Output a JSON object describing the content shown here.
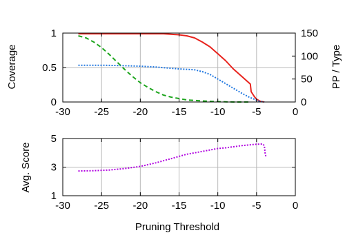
{
  "chart_data": [
    {
      "type": "line",
      "title": "",
      "xlabel": "",
      "ylabel": "Coverage",
      "y2label": "PP / Type",
      "xlim": [
        -30,
        0
      ],
      "ylim": [
        0,
        1
      ],
      "y2lim": [
        0,
        150
      ],
      "xticks": [
        -30,
        -25,
        -20,
        -15,
        -10,
        -5,
        0
      ],
      "yticks": [
        0,
        0.5,
        1
      ],
      "y2ticks": [
        0,
        50,
        100,
        150
      ],
      "grid": true,
      "series": [
        {
          "color": "#e8231d",
          "style": "solid",
          "axis": "y",
          "points": [
            [
              -28,
              0.99
            ],
            [
              -25,
              0.99
            ],
            [
              -20,
              0.99
            ],
            [
              -17,
              0.99
            ],
            [
              -15,
              0.975
            ],
            [
              -14,
              0.96
            ],
            [
              -13,
              0.93
            ],
            [
              -12,
              0.87
            ],
            [
              -11,
              0.8
            ],
            [
              -10,
              0.7
            ],
            [
              -9,
              0.6
            ],
            [
              -8,
              0.48
            ],
            [
              -7,
              0.38
            ],
            [
              -6,
              0.28
            ],
            [
              -5.8,
              0.26
            ],
            [
              -5.7,
              0.15
            ],
            [
              -5.3,
              0.08
            ],
            [
              -5,
              0.04
            ],
            [
              -4.5,
              0.01
            ],
            [
              -4,
              0.0
            ]
          ]
        },
        {
          "color": "#1f77e0",
          "style": "dotted",
          "axis": "y2",
          "points": [
            [
              -28,
              80
            ],
            [
              -25,
              80
            ],
            [
              -22,
              79
            ],
            [
              -20,
              78
            ],
            [
              -18,
              76
            ],
            [
              -15,
              72
            ],
            [
              -13,
              70
            ],
            [
              -12,
              66
            ],
            [
              -11,
              60
            ],
            [
              -10,
              50
            ],
            [
              -9,
              40
            ],
            [
              -8,
              30
            ],
            [
              -7,
              20
            ],
            [
              -6,
              11
            ],
            [
              -5,
              4
            ],
            [
              -4.5,
              1
            ],
            [
              -4,
              0
            ]
          ]
        },
        {
          "color": "#1da51d",
          "style": "dashed",
          "axis": "y",
          "points": [
            [
              -28,
              0.96
            ],
            [
              -27,
              0.93
            ],
            [
              -26,
              0.87
            ],
            [
              -25,
              0.79
            ],
            [
              -24,
              0.69
            ],
            [
              -23,
              0.58
            ],
            [
              -22,
              0.47
            ],
            [
              -21,
              0.37
            ],
            [
              -20,
              0.28
            ],
            [
              -19,
              0.21
            ],
            [
              -18,
              0.15
            ],
            [
              -17,
              0.1
            ],
            [
              -16,
              0.07
            ],
            [
              -15,
              0.05
            ],
            [
              -14,
              0.03
            ],
            [
              -12,
              0.015
            ],
            [
              -10,
              0.005
            ],
            [
              -8,
              0.0
            ],
            [
              -6,
              0.0
            ]
          ]
        }
      ]
    },
    {
      "type": "line",
      "title": "",
      "xlabel": "Pruning Threshold",
      "ylabel": "Avg. Score",
      "xlim": [
        -30,
        0
      ],
      "ylim": [
        1,
        5
      ],
      "xticks": [
        -30,
        -25,
        -20,
        -15,
        -10,
        -5,
        0
      ],
      "yticks": [
        1,
        3,
        5
      ],
      "grid": true,
      "series": [
        {
          "color": "#b000e0",
          "style": "dotted",
          "points": [
            [
              -28,
              2.73
            ],
            [
              -26,
              2.75
            ],
            [
              -24,
              2.8
            ],
            [
              -22,
              2.9
            ],
            [
              -20,
              3.05
            ],
            [
              -18,
              3.3
            ],
            [
              -16,
              3.6
            ],
            [
              -15,
              3.75
            ],
            [
              -14,
              3.9
            ],
            [
              -13,
              4.0
            ],
            [
              -12,
              4.1
            ],
            [
              -11,
              4.2
            ],
            [
              -10,
              4.3
            ],
            [
              -9,
              4.35
            ],
            [
              -8,
              4.42
            ],
            [
              -7,
              4.5
            ],
            [
              -6,
              4.55
            ],
            [
              -5,
              4.6
            ],
            [
              -4.2,
              4.62
            ],
            [
              -4.0,
              4.5
            ],
            [
              -3.9,
              4.0
            ],
            [
              -3.8,
              3.75
            ]
          ]
        }
      ]
    }
  ]
}
